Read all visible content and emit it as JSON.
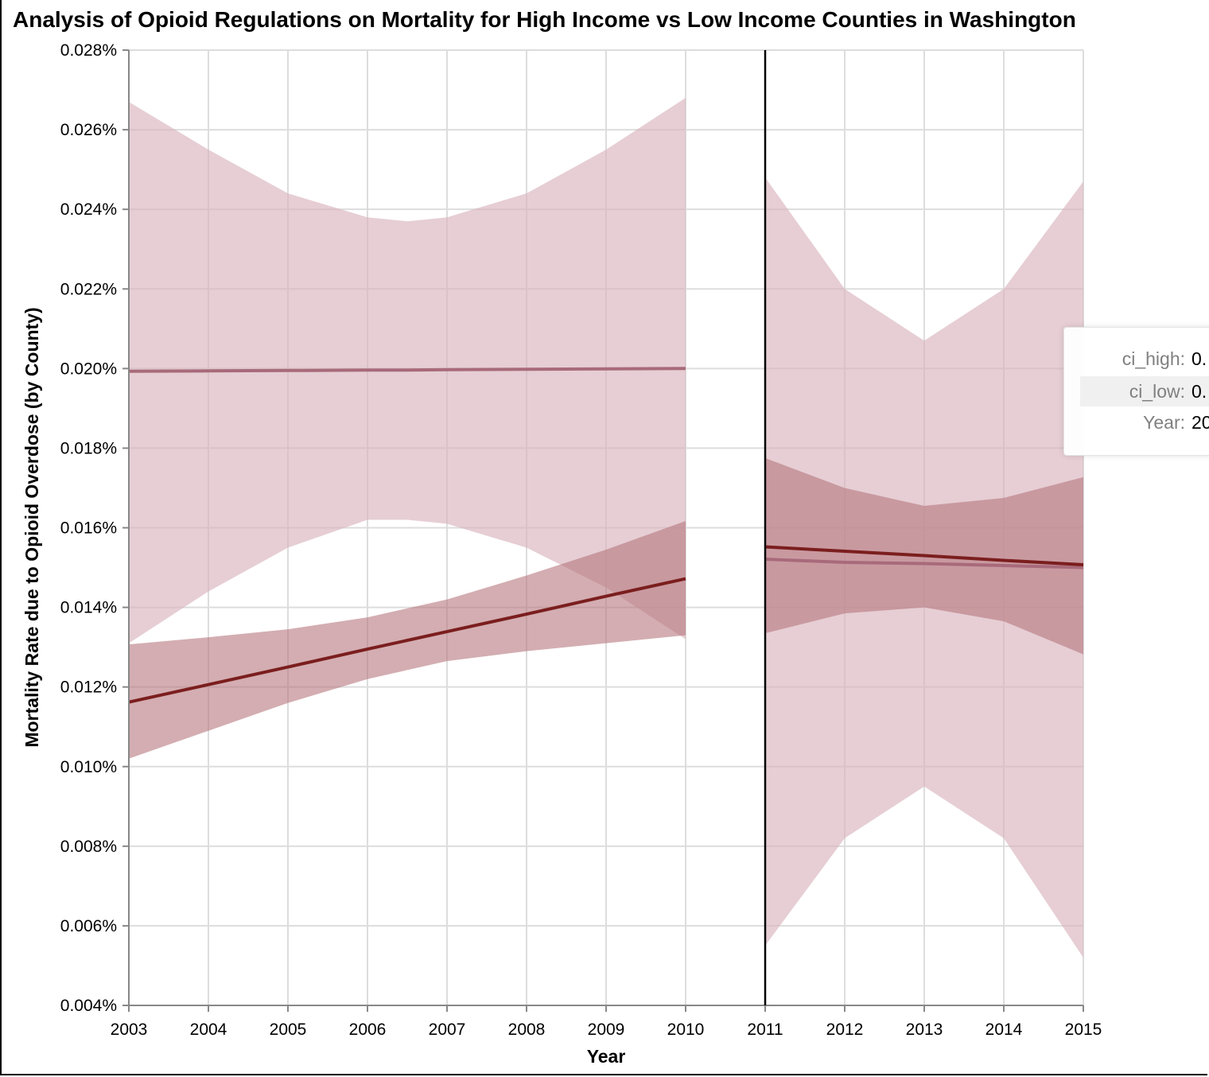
{
  "chart_data": {
    "type": "line",
    "title": "Analysis of Opioid Regulations on Mortality for High Income vs Low Income Counties in Washington",
    "xlabel": "Year",
    "ylabel": "Mortality Rate due to Opioid Overdose (by County)",
    "xlim": [
      2003,
      2015
    ],
    "ylim": [
      0.004,
      0.028
    ],
    "x_ticks": [
      "2003",
      "2004",
      "2005",
      "2006",
      "2007",
      "2008",
      "2009",
      "2010",
      "2011",
      "2012",
      "2013",
      "2014",
      "2015"
    ],
    "y_ticks": [
      "0.004%",
      "0.006%",
      "0.008%",
      "0.010%",
      "0.012%",
      "0.014%",
      "0.016%",
      "0.018%",
      "0.020%",
      "0.022%",
      "0.024%",
      "0.026%",
      "0.028%"
    ],
    "grid": true,
    "policy_line_year": 2011,
    "colors": {
      "dark_line": "#7b1e1e",
      "light_line": "#a86a7a",
      "dark_band": "#b5777d",
      "light_band": "#d8b4bd"
    },
    "series": [
      {
        "segment": "pre",
        "line_color": "#a86a7a",
        "band_color": "#d8b4bd",
        "band_opacity": 0.65,
        "x": [
          2003,
          2004,
          2005,
          2006,
          2006.5,
          2007,
          2008,
          2009,
          2010
        ],
        "y": [
          0.01993,
          0.01994,
          0.01995,
          0.01996,
          0.01996,
          0.01997,
          0.01998,
          0.01999,
          0.02
        ],
        "ci_high": [
          0.0267,
          0.0255,
          0.0244,
          0.0238,
          0.0237,
          0.0238,
          0.0244,
          0.0255,
          0.0268
        ],
        "ci_low": [
          0.0131,
          0.0144,
          0.0155,
          0.0162,
          0.0162,
          0.0161,
          0.0155,
          0.0145,
          0.0132
        ]
      },
      {
        "segment": "pre",
        "line_color": "#7b1e1e",
        "band_color": "#b5777d",
        "band_opacity": 0.6,
        "x": [
          2003,
          2004,
          2005,
          2006,
          2007,
          2008,
          2009,
          2010
        ],
        "y": [
          0.01162,
          0.01206,
          0.0125,
          0.01295,
          0.01339,
          0.01383,
          0.01428,
          0.01472
        ],
        "ci_high": [
          0.01307,
          0.01325,
          0.01345,
          0.01375,
          0.0142,
          0.0148,
          0.01545,
          0.01617
        ],
        "ci_low": [
          0.0102,
          0.0109,
          0.0116,
          0.0122,
          0.01265,
          0.0129,
          0.0131,
          0.0133
        ]
      },
      {
        "segment": "post",
        "line_color": "#a86a7a",
        "band_color": "#d8b4bd",
        "band_opacity": 0.65,
        "x": [
          2011,
          2012,
          2013,
          2014,
          2015
        ],
        "y": [
          0.01521,
          0.01513,
          0.0151,
          0.01505,
          0.015
        ],
        "ci_high": [
          0.0248,
          0.022,
          0.0207,
          0.022,
          0.0247
        ],
        "ci_low": [
          0.0055,
          0.0082,
          0.0095,
          0.0082,
          0.0052
        ]
      },
      {
        "segment": "post",
        "line_color": "#7b1e1e",
        "band_color": "#b5777d",
        "band_opacity": 0.6,
        "x": [
          2011,
          2012,
          2013,
          2014,
          2015
        ],
        "y": [
          0.01552,
          0.01541,
          0.0153,
          0.01518,
          0.01507
        ],
        "ci_high": [
          0.01775,
          0.017,
          0.01655,
          0.01675,
          0.01727
        ],
        "ci_low": [
          0.01335,
          0.01385,
          0.014,
          0.01365,
          0.01282
        ]
      }
    ]
  },
  "tooltip": {
    "rows": [
      {
        "key": "ci_high:",
        "value": "0."
      },
      {
        "key": "ci_low:",
        "value": "0."
      },
      {
        "key": "Year:",
        "value": "20"
      }
    ]
  }
}
